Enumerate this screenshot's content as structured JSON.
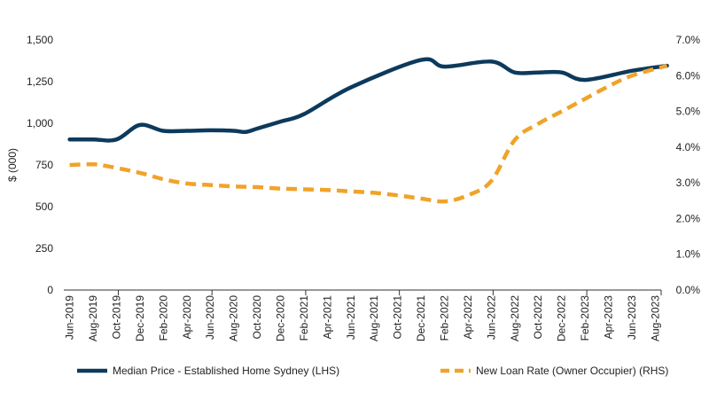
{
  "chart_data": {
    "type": "line",
    "x": [
      "Jun-2019",
      "Aug-2019",
      "Oct-2019",
      "Dec-2019",
      "Feb-2020",
      "Apr-2020",
      "Jun-2020",
      "Aug-2020",
      "Oct-2020",
      "Dec-2020",
      "Feb-2021",
      "Apr-2021",
      "Jun-2021",
      "Aug-2021",
      "Oct-2021",
      "Dec-2021",
      "Feb-2022",
      "Apr-2022",
      "Jun-2022",
      "Aug-2022",
      "Oct-2022",
      "Dec-2022",
      "Feb-2023",
      "Apr-2023",
      "Jun-2023",
      "Aug-2023"
    ],
    "xlabels": [
      "Jun-2019",
      "Aug-2019",
      "Oct-2019",
      "Dec-2019",
      "Feb-2020",
      "Apr-2020",
      "Jun-2020",
      "Aug-2020",
      "Oct-2020",
      "Dec-2020",
      "Feb-2021",
      "Apr-2021",
      "Jun-2021",
      "Aug-2021",
      "Oct-2021",
      "Dec-2021",
      "Feb-2022",
      "Apr-2022",
      "Jun-2022",
      "Aug-2022",
      "Oct-2022",
      "Dec-2022",
      "Feb-2023",
      "Apr-2023",
      "Jun-2023",
      "Aug-2023"
    ],
    "ylabel_left": "$ (000)",
    "ylim_left": [
      0,
      1500
    ],
    "yticks_left": [
      "0",
      "250",
      "500",
      "750",
      "1,000",
      "1,250",
      "1,500"
    ],
    "ylim_right": [
      0,
      7
    ],
    "yticks_right": [
      "0.0%",
      "1.0%",
      "2.0%",
      "3.0%",
      "4.0%",
      "5.0%",
      "6.0%",
      "7.0%"
    ],
    "series": [
      {
        "name": "Median Price - Established Home Sydney (LHS)",
        "axis": "left",
        "style": "solid",
        "color": "#0d3a5c",
        "x": [
          "Jun-2019",
          "Aug-2019",
          "Oct-2019",
          "Dec-2019",
          "Feb-2020",
          "Apr-2020",
          "Jun-2020",
          "Aug-2020",
          "Sep-2020",
          "Oct-2020",
          "Dec-2020",
          "Feb-2021",
          "Jun-2021",
          "Dec-2021",
          "Feb-2022",
          "Jun-2022",
          "Aug-2022",
          "Oct-2022",
          "Dec-2022",
          "Feb-2023",
          "Jun-2023",
          "Sep-2023"
        ],
        "values": [
          903,
          903,
          903,
          990,
          955,
          955,
          958,
          955,
          948,
          968,
          1010,
          1055,
          1215,
          1380,
          1340,
          1370,
          1305,
          1305,
          1305,
          1260,
          1315,
          1345
        ]
      },
      {
        "name": "New Loan Rate (Owner Occupier) (RHS)",
        "axis": "right",
        "style": "dashed",
        "color": "#f0a32a",
        "x": [
          "Jun-2019",
          "Aug-2019",
          "Sep-2019",
          "Dec-2019",
          "Feb-2020",
          "Apr-2020",
          "Jun-2020",
          "Aug-2020",
          "Oct-2020",
          "Dec-2020",
          "Feb-2021",
          "Apr-2021",
          "Jun-2021",
          "Aug-2021",
          "Oct-2021",
          "Dec-2021",
          "Feb-2022",
          "Apr-2022",
          "Jun-2022",
          "Aug-2022",
          "Oct-2022",
          "Dec-2022",
          "Feb-2023",
          "Apr-2023",
          "Jun-2023",
          "Sep-2023"
        ],
        "values": [
          3.5,
          3.52,
          3.48,
          3.28,
          3.1,
          2.98,
          2.94,
          2.9,
          2.88,
          2.84,
          2.82,
          2.8,
          2.76,
          2.72,
          2.65,
          2.56,
          2.48,
          2.65,
          3.05,
          4.2,
          4.65,
          5.0,
          5.35,
          5.7,
          6.0,
          6.28
        ]
      }
    ],
    "legend_position": "bottom",
    "grid": false
  }
}
